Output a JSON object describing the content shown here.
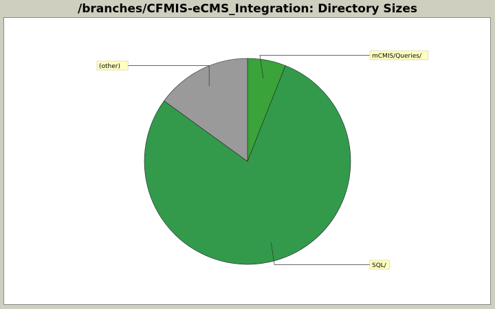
{
  "chart_data": {
    "type": "pie",
    "title": "/branches/CFMIS-eCMS_Integration: Directory Sizes",
    "slices": [
      {
        "label": "mCMIS/Queries/",
        "value": 6,
        "color": "#3aa33a"
      },
      {
        "label": "SQL/",
        "value": 79,
        "color": "#339a4c"
      },
      {
        "label": "(other)",
        "value": 15,
        "color": "#9a9a9a"
      }
    ],
    "label_background": "#ffffc0"
  }
}
